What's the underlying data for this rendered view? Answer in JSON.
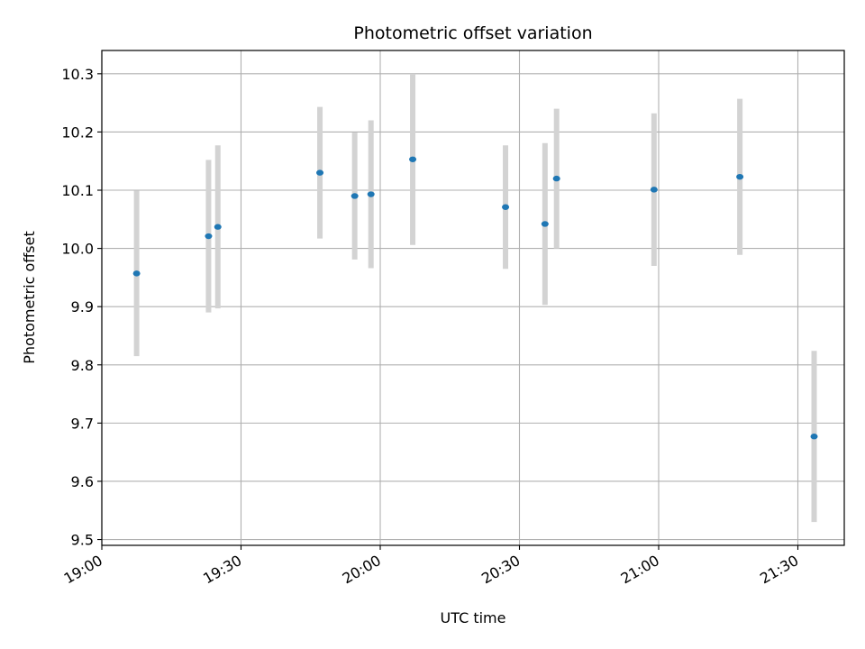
{
  "chart_data": {
    "type": "scatter",
    "title": "Photometric offset variation",
    "xlabel": "UTC time",
    "ylabel": "Photometric offset",
    "x_tick_labels": [
      "19:00",
      "19:30",
      "20:00",
      "20:30",
      "21:00",
      "21:30"
    ],
    "x_tick_times": [
      "19:00",
      "19:30",
      "20:00",
      "20:30",
      "21:00",
      "21:30"
    ],
    "xlim": [
      "19:00",
      "21:40"
    ],
    "y_ticks": [
      9.5,
      9.6,
      9.7,
      9.8,
      9.9,
      10.0,
      10.1,
      10.2,
      10.3
    ],
    "y_tick_labels": [
      "9.5",
      "9.6",
      "9.7",
      "9.8",
      "9.9",
      "10.0",
      "10.1",
      "10.2",
      "10.3"
    ],
    "ylim": [
      9.49,
      10.34
    ],
    "grid": true,
    "marker_color": "#1f77b4",
    "errorbar_color": "#d3d3d3",
    "points": [
      {
        "t": "19:07:30",
        "y": 9.957,
        "err": 0.142
      },
      {
        "t": "19:23:00",
        "y": 10.021,
        "err": 0.131
      },
      {
        "t": "19:25:00",
        "y": 10.037,
        "err": 0.14
      },
      {
        "t": "19:47:00",
        "y": 10.13,
        "err": 0.113
      },
      {
        "t": "19:54:30",
        "y": 10.09,
        "err": 0.109
      },
      {
        "t": "19:58:00",
        "y": 10.093,
        "err": 0.127
      },
      {
        "t": "20:07:00",
        "y": 10.153,
        "err": 0.147
      },
      {
        "t": "20:27:00",
        "y": 10.071,
        "err": 0.106
      },
      {
        "t": "20:35:30",
        "y": 10.042,
        "err": 0.139
      },
      {
        "t": "20:38:00",
        "y": 10.12,
        "err": 0.12
      },
      {
        "t": "20:59:00",
        "y": 10.101,
        "err": 0.131
      },
      {
        "t": "21:17:30",
        "y": 10.123,
        "err": 0.134
      },
      {
        "t": "21:33:30",
        "y": 9.677,
        "err": 0.147
      }
    ]
  }
}
